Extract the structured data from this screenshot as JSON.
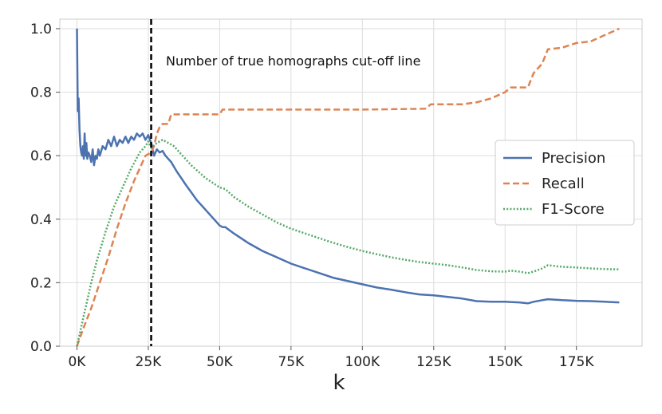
{
  "chart_data": {
    "type": "line",
    "title": "",
    "xlabel": "k",
    "ylabel": "",
    "xlim": [
      -6000,
      198000
    ],
    "ylim": [
      0,
      1.03
    ],
    "x_ticks": [
      0,
      25000,
      50000,
      75000,
      100000,
      125000,
      150000,
      175000
    ],
    "x_tick_labels": [
      "0K",
      "25K",
      "50K",
      "75K",
      "100K",
      "125K",
      "150K",
      "175K"
    ],
    "y_ticks": [
      0.0,
      0.2,
      0.4,
      0.6,
      0.8,
      1.0
    ],
    "y_tick_labels": [
      "0.0",
      "0.2",
      "0.4",
      "0.6",
      "0.8",
      "1.0"
    ],
    "grid": true,
    "legend_position": "right",
    "cutoff": {
      "x": 26000,
      "label": "Number of true homographs cut-off line",
      "color": "#000000"
    },
    "series": [
      {
        "name": "Precision",
        "style": "solid",
        "color": "#4c72b0",
        "points": [
          [
            0,
            1.0
          ],
          [
            300,
            0.74
          ],
          [
            600,
            0.78
          ],
          [
            900,
            0.68
          ],
          [
            1200,
            0.63
          ],
          [
            1500,
            0.61
          ],
          [
            1800,
            0.6
          ],
          [
            2100,
            0.63
          ],
          [
            2400,
            0.59
          ],
          [
            2700,
            0.67
          ],
          [
            3000,
            0.6
          ],
          [
            3300,
            0.64
          ],
          [
            3600,
            0.59
          ],
          [
            4000,
            0.61
          ],
          [
            4500,
            0.6
          ],
          [
            5000,
            0.58
          ],
          [
            5500,
            0.62
          ],
          [
            6000,
            0.57
          ],
          [
            6500,
            0.6
          ],
          [
            7000,
            0.59
          ],
          [
            7500,
            0.62
          ],
          [
            8000,
            0.6
          ],
          [
            9000,
            0.63
          ],
          [
            10000,
            0.62
          ],
          [
            11000,
            0.65
          ],
          [
            12000,
            0.63
          ],
          [
            13000,
            0.66
          ],
          [
            14000,
            0.63
          ],
          [
            15000,
            0.65
          ],
          [
            16000,
            0.64
          ],
          [
            17000,
            0.66
          ],
          [
            18000,
            0.64
          ],
          [
            19000,
            0.66
          ],
          [
            20000,
            0.65
          ],
          [
            21000,
            0.67
          ],
          [
            22000,
            0.66
          ],
          [
            23000,
            0.67
          ],
          [
            24000,
            0.65
          ],
          [
            25000,
            0.665
          ],
          [
            26000,
            0.64
          ],
          [
            27000,
            0.6
          ],
          [
            28000,
            0.62
          ],
          [
            29000,
            0.61
          ],
          [
            30000,
            0.615
          ],
          [
            31000,
            0.6
          ],
          [
            33000,
            0.58
          ],
          [
            35000,
            0.55
          ],
          [
            38000,
            0.51
          ],
          [
            42000,
            0.46
          ],
          [
            46000,
            0.42
          ],
          [
            50000,
            0.38
          ],
          [
            51000,
            0.375
          ],
          [
            52000,
            0.375
          ],
          [
            55000,
            0.355
          ],
          [
            60000,
            0.325
          ],
          [
            65000,
            0.3
          ],
          [
            70000,
            0.28
          ],
          [
            75000,
            0.26
          ],
          [
            80000,
            0.245
          ],
          [
            85000,
            0.23
          ],
          [
            90000,
            0.215
          ],
          [
            95000,
            0.205
          ],
          [
            100000,
            0.195
          ],
          [
            105000,
            0.185
          ],
          [
            110000,
            0.178
          ],
          [
            115000,
            0.17
          ],
          [
            120000,
            0.163
          ],
          [
            125000,
            0.16
          ],
          [
            130000,
            0.155
          ],
          [
            135000,
            0.15
          ],
          [
            140000,
            0.142
          ],
          [
            145000,
            0.14
          ],
          [
            150000,
            0.14
          ],
          [
            155000,
            0.138
          ],
          [
            158000,
            0.135
          ],
          [
            160000,
            0.14
          ],
          [
            163000,
            0.145
          ],
          [
            165000,
            0.148
          ],
          [
            170000,
            0.145
          ],
          [
            175000,
            0.143
          ],
          [
            180000,
            0.142
          ],
          [
            185000,
            0.14
          ],
          [
            190000,
            0.138
          ]
        ]
      },
      {
        "name": "Recall",
        "style": "dashed",
        "color": "#dd8452",
        "points": [
          [
            0,
            0.0
          ],
          [
            2000,
            0.05
          ],
          [
            5000,
            0.12
          ],
          [
            8000,
            0.2
          ],
          [
            11000,
            0.28
          ],
          [
            14000,
            0.37
          ],
          [
            17000,
            0.45
          ],
          [
            20000,
            0.52
          ],
          [
            23000,
            0.58
          ],
          [
            24000,
            0.6
          ],
          [
            26000,
            0.61
          ],
          [
            27000,
            0.63
          ],
          [
            28000,
            0.67
          ],
          [
            29000,
            0.69
          ],
          [
            30000,
            0.7
          ],
          [
            32000,
            0.7
          ],
          [
            33000,
            0.73
          ],
          [
            40000,
            0.73
          ],
          [
            45000,
            0.73
          ],
          [
            50000,
            0.73
          ],
          [
            51000,
            0.745
          ],
          [
            60000,
            0.745
          ],
          [
            80000,
            0.745
          ],
          [
            100000,
            0.745
          ],
          [
            122000,
            0.748
          ],
          [
            124000,
            0.762
          ],
          [
            135000,
            0.762
          ],
          [
            140000,
            0.768
          ],
          [
            145000,
            0.78
          ],
          [
            150000,
            0.8
          ],
          [
            152000,
            0.815
          ],
          [
            158000,
            0.815
          ],
          [
            160000,
            0.86
          ],
          [
            163000,
            0.89
          ],
          [
            165000,
            0.935
          ],
          [
            170000,
            0.94
          ],
          [
            175000,
            0.955
          ],
          [
            180000,
            0.96
          ],
          [
            185000,
            0.98
          ],
          [
            190000,
            1.0
          ]
        ]
      },
      {
        "name": "F1-Score",
        "style": "dotted",
        "color": "#55a868",
        "points": [
          [
            0,
            0.0
          ],
          [
            1000,
            0.04
          ],
          [
            3000,
            0.12
          ],
          [
            5000,
            0.2
          ],
          [
            7000,
            0.27
          ],
          [
            10000,
            0.36
          ],
          [
            13000,
            0.44
          ],
          [
            16000,
            0.5
          ],
          [
            19000,
            0.56
          ],
          [
            22000,
            0.61
          ],
          [
            24000,
            0.63
          ],
          [
            25000,
            0.645
          ],
          [
            26000,
            0.625
          ],
          [
            28000,
            0.64
          ],
          [
            30000,
            0.65
          ],
          [
            32000,
            0.64
          ],
          [
            34000,
            0.63
          ],
          [
            37000,
            0.6
          ],
          [
            40000,
            0.57
          ],
          [
            45000,
            0.53
          ],
          [
            50000,
            0.5
          ],
          [
            52000,
            0.495
          ],
          [
            55000,
            0.47
          ],
          [
            60000,
            0.44
          ],
          [
            65000,
            0.415
          ],
          [
            70000,
            0.39
          ],
          [
            75000,
            0.37
          ],
          [
            80000,
            0.355
          ],
          [
            85000,
            0.34
          ],
          [
            90000,
            0.325
          ],
          [
            95000,
            0.312
          ],
          [
            100000,
            0.3
          ],
          [
            105000,
            0.29
          ],
          [
            110000,
            0.28
          ],
          [
            115000,
            0.272
          ],
          [
            120000,
            0.265
          ],
          [
            125000,
            0.26
          ],
          [
            130000,
            0.255
          ],
          [
            135000,
            0.248
          ],
          [
            140000,
            0.24
          ],
          [
            145000,
            0.236
          ],
          [
            150000,
            0.235
          ],
          [
            152000,
            0.238
          ],
          [
            155000,
            0.235
          ],
          [
            158000,
            0.23
          ],
          [
            160000,
            0.235
          ],
          [
            163000,
            0.245
          ],
          [
            165000,
            0.255
          ],
          [
            170000,
            0.25
          ],
          [
            175000,
            0.248
          ],
          [
            180000,
            0.245
          ],
          [
            185000,
            0.243
          ],
          [
            190000,
            0.242
          ]
        ]
      }
    ]
  }
}
